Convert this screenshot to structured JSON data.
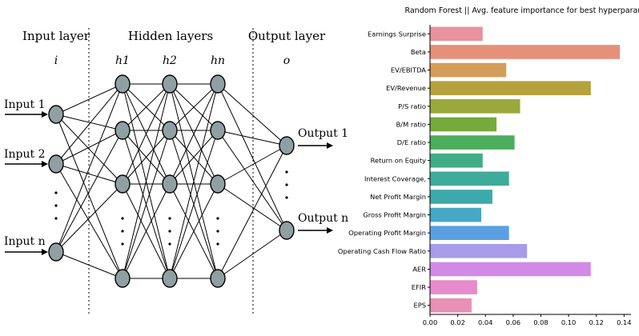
{
  "diagram": {
    "layer_titles": [
      "Input layer",
      "Hidden layers",
      "Output layer"
    ],
    "layer_symbols": {
      "input": "i",
      "hidden": [
        "h1",
        "h2",
        "hn"
      ],
      "output": "o"
    },
    "inputs": [
      "Input 1",
      "Input 2",
      "Input n"
    ],
    "outputs": [
      "Output 1",
      "Output n"
    ],
    "colors": {
      "node_fill": "#8f9fa2",
      "line": "#000000"
    }
  },
  "chart_data": {
    "type": "bar",
    "orientation": "horizontal",
    "title": "Random Forest || Avg. feature importance for best hyperparams",
    "xlabel": "",
    "ylabel": "",
    "xlim": [
      0,
      0.145
    ],
    "xticks": [
      "0.00",
      "0.02",
      "0.04",
      "0.06",
      "0.08",
      "0.10",
      "0.12",
      "0.14"
    ],
    "xtick_values": [
      0,
      0.02,
      0.04,
      0.06,
      0.08,
      0.1,
      0.12,
      0.14
    ],
    "categories": [
      "Earnings Surprise",
      "Beta",
      "EV/EBITDA",
      "EV/Revenue",
      "P/S ratio",
      "B/M ratio",
      "D/E ratio",
      "Return on Equity",
      "Interest Coverage,",
      "Net Profit Margin",
      "Gross Profit Margin",
      "Operating Profit Margin",
      "Operating Cash Flow Ratio",
      "AER",
      "EFIR",
      "EPS"
    ],
    "values": [
      0.038,
      0.137,
      0.055,
      0.116,
      0.065,
      0.048,
      0.061,
      0.038,
      0.057,
      0.045,
      0.037,
      0.057,
      0.07,
      0.116,
      0.034,
      0.03
    ],
    "colors": [
      "#e8929d",
      "#e5917a",
      "#d49c5a",
      "#b5a23d",
      "#9aa83c",
      "#74ab3c",
      "#4bae5c",
      "#40ad86",
      "#3fab9a",
      "#3ea9aa",
      "#44a8c6",
      "#5aa0e0",
      "#a79bea",
      "#d18be6",
      "#e68ccc",
      "#e890b6"
    ],
    "grid": false,
    "legend": "none"
  }
}
